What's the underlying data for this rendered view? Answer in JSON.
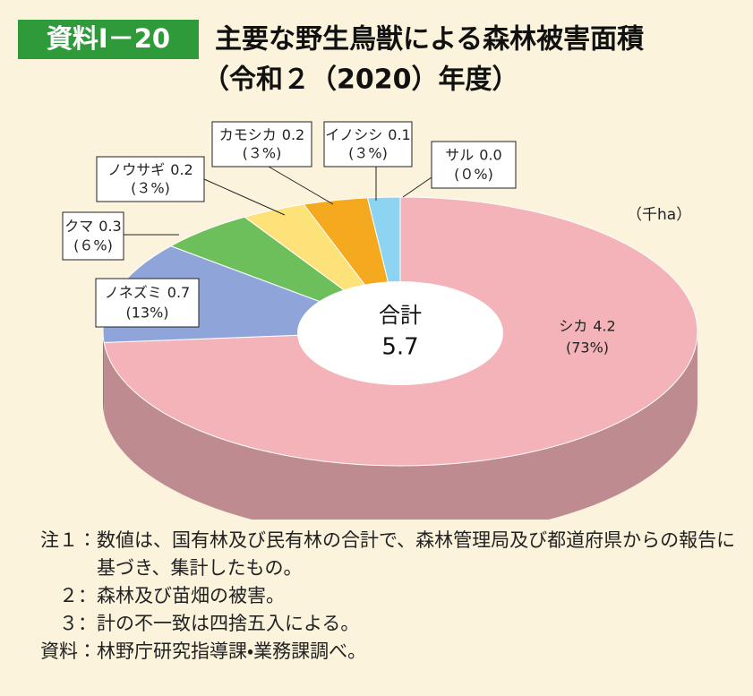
{
  "badge": "資料Ⅰ－20",
  "chart_data": {
    "type": "pie",
    "title": "主要な野生鳥獣による森林被害面積",
    "subtitle": "（令和２（2020）年度）",
    "unit": "（千ha）",
    "total_label": "合計",
    "total": 5.7,
    "categories": [
      "シカ",
      "ノネズミ",
      "クマ",
      "ノウサギ",
      "カモシカ",
      "イノシシ",
      "サル"
    ],
    "values": [
      4.2,
      0.7,
      0.3,
      0.2,
      0.2,
      0.1,
      0.0
    ],
    "value_labels": [
      "4.2",
      "0.7",
      "0.3",
      "0.2",
      "0.2",
      "0.1",
      "0.0"
    ],
    "percents": [
      73,
      13,
      6,
      3,
      3,
      3,
      0
    ],
    "percent_labels": [
      "(73%)",
      "(13%)",
      "(６%)",
      "(３%)",
      "(３%)",
      "(３%)",
      "(０%)"
    ],
    "colors": [
      "#f4b3b8",
      "#8fa4d8",
      "#6cbf5a",
      "#fde27a",
      "#f5a91f",
      "#8dd3f2",
      "#cccccc"
    ]
  },
  "notes": [
    {
      "label": "注１：",
      "text": "数値は、国有林及び民有林の合計で、森林管理局及び都道府県からの報告に基づき、集計したもの。"
    },
    {
      "label": "２：",
      "text": "森林及び苗畑の被害。"
    },
    {
      "label": "３：",
      "text": "計の不一致は四捨五入による。"
    },
    {
      "label": "資料：",
      "text": "林野庁研究指導課・業務課調べ。"
    }
  ]
}
